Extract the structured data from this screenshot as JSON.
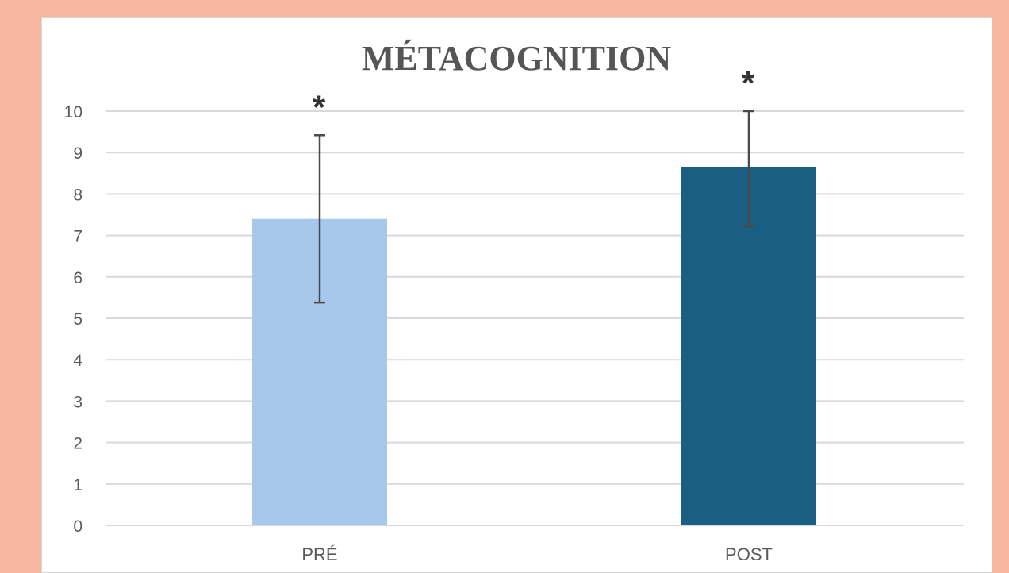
{
  "chart_data": {
    "type": "bar",
    "title": "MÉTACOGNITION",
    "xlabel": "",
    "ylabel": "",
    "categories": [
      "PRÉ",
      "POST"
    ],
    "values": [
      7.4,
      8.65
    ],
    "error_low": [
      5.38,
      7.22
    ],
    "error_high": [
      9.42,
      10.0
    ],
    "significance": [
      "*",
      "*"
    ],
    "ylim": [
      0,
      10
    ],
    "yticks": [
      0,
      1,
      2,
      3,
      4,
      5,
      6,
      7,
      8,
      9,
      10
    ],
    "colors": [
      "#a7c8ea",
      "#185f83"
    ],
    "grid": true,
    "legend": "none"
  },
  "colors": {
    "page_background": "#f7b7a0",
    "panel_background": "#ffffff",
    "gridline": "#d9d9d9",
    "error_bar": "#4a4a4a"
  }
}
